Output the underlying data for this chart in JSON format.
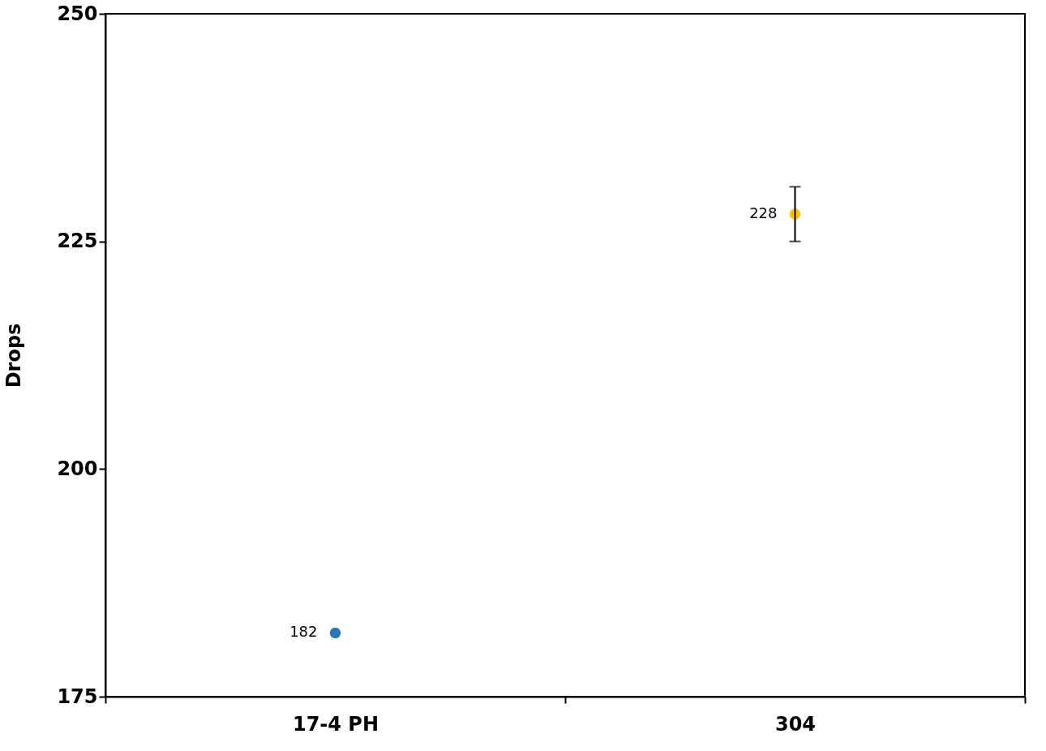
{
  "chart_data": {
    "type": "scatter",
    "ylabel": "Drops",
    "categories": [
      "17-4 PH",
      "304"
    ],
    "values": [
      182,
      228
    ],
    "colors": [
      "#2e75b6",
      "#ffc000"
    ],
    "errors": [
      null,
      [
        225,
        231
      ]
    ],
    "data_labels": true,
    "ylim": [
      175,
      250
    ],
    "yticks": [
      175,
      200,
      225,
      250
    ],
    "grid": false,
    "marker": "circle"
  }
}
